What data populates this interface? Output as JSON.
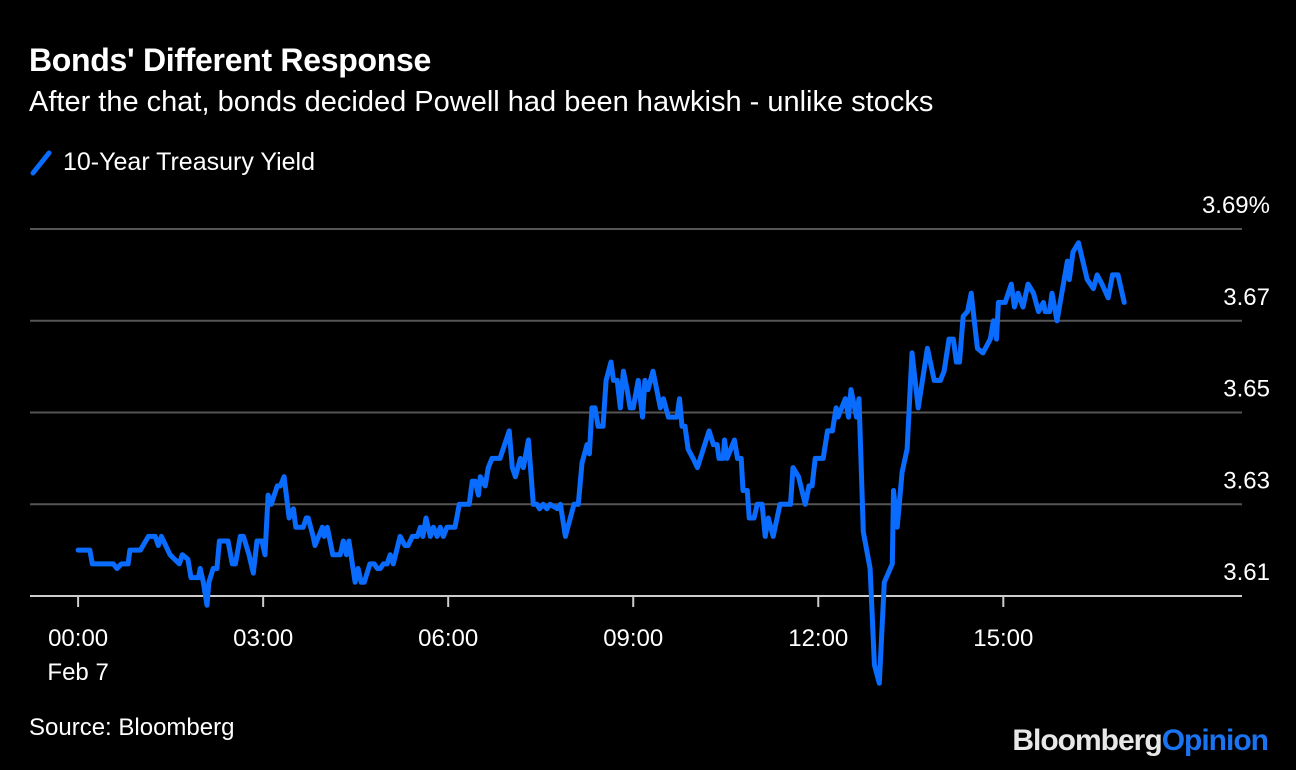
{
  "title": "Bonds' Different Response",
  "subtitle": "After the chat, bonds decided Powell had been hawkish - unlike stocks",
  "source": "Source: Bloomberg",
  "logo": {
    "part1": "Bloomberg",
    "part2": "Opinion"
  },
  "colors": {
    "line": "#0a6cff",
    "grid": "#555555",
    "axis": "#cccccc"
  },
  "chart_data": {
    "type": "line",
    "title": "Bonds' Different Response",
    "subtitle": "After the chat, bonds decided Powell had been hawkish - unlike stocks",
    "xlabel": "",
    "ylabel": "",
    "x_unit": "hours since 00:00 Feb 7",
    "xlim": [
      -0.78,
      18.87
    ],
    "ylim": [
      3.61,
      3.69
    ],
    "grid": true,
    "legend_placement": "top-left",
    "x_ticks": [
      {
        "value": 0,
        "label": "00:00",
        "sublabel": "Feb 7"
      },
      {
        "value": 3,
        "label": "03:00"
      },
      {
        "value": 6,
        "label": "06:00"
      },
      {
        "value": 9,
        "label": "09:00"
      },
      {
        "value": 12,
        "label": "12:00"
      },
      {
        "value": 15,
        "label": "15:00"
      }
    ],
    "y_ticks": [
      {
        "value": 3.61,
        "label": "3.61"
      },
      {
        "value": 3.63,
        "label": "3.63"
      },
      {
        "value": 3.65,
        "label": "3.65"
      },
      {
        "value": 3.67,
        "label": "3.67"
      },
      {
        "value": 3.69,
        "label": "3.69%"
      }
    ],
    "series": [
      {
        "name": "10-Year Treasury Yield",
        "points": [
          [
            0,
            3.62
          ],
          [
            0.19,
            3.62
          ],
          [
            0.23,
            3.617
          ],
          [
            0.57,
            3.617
          ],
          [
            0.63,
            3.616
          ],
          [
            0.7,
            3.617
          ],
          [
            0.81,
            3.617
          ],
          [
            0.84,
            3.62
          ],
          [
            1.01,
            3.62
          ],
          [
            1.14,
            3.623
          ],
          [
            1.25,
            3.623
          ],
          [
            1.3,
            3.621
          ],
          [
            1.35,
            3.623
          ],
          [
            1.49,
            3.619
          ],
          [
            1.64,
            3.617
          ],
          [
            1.69,
            3.619
          ],
          [
            1.78,
            3.618
          ],
          [
            1.83,
            3.614
          ],
          [
            1.95,
            3.614
          ],
          [
            1.98,
            3.616
          ],
          [
            2.03,
            3.613
          ],
          [
            2.09,
            3.608
          ],
          [
            2.12,
            3.613
          ],
          [
            2.19,
            3.616
          ],
          [
            2.25,
            3.616
          ],
          [
            2.29,
            3.622
          ],
          [
            2.43,
            3.622
          ],
          [
            2.5,
            3.617
          ],
          [
            2.55,
            3.617
          ],
          [
            2.63,
            3.623
          ],
          [
            2.68,
            3.623
          ],
          [
            2.77,
            3.619
          ],
          [
            2.84,
            3.615
          ],
          [
            2.9,
            3.622
          ],
          [
            2.98,
            3.622
          ],
          [
            3.03,
            3.619
          ],
          [
            3.08,
            3.632
          ],
          [
            3.13,
            3.63
          ],
          [
            3.23,
            3.634
          ],
          [
            3.28,
            3.634
          ],
          [
            3.34,
            3.636
          ],
          [
            3.42,
            3.627
          ],
          [
            3.49,
            3.629
          ],
          [
            3.53,
            3.625
          ],
          [
            3.65,
            3.625
          ],
          [
            3.7,
            3.627
          ],
          [
            3.73,
            3.627
          ],
          [
            3.81,
            3.623
          ],
          [
            3.84,
            3.621
          ],
          [
            3.96,
            3.625
          ],
          [
            3.99,
            3.623
          ],
          [
            4.04,
            3.625
          ],
          [
            4.13,
            3.619
          ],
          [
            4.25,
            3.619
          ],
          [
            4.3,
            3.622
          ],
          [
            4.35,
            3.619
          ],
          [
            4.39,
            3.622
          ],
          [
            4.49,
            3.613
          ],
          [
            4.54,
            3.616
          ],
          [
            4.59,
            3.613
          ],
          [
            4.64,
            3.613
          ],
          [
            4.73,
            3.617
          ],
          [
            4.8,
            3.617
          ],
          [
            4.85,
            3.616
          ],
          [
            4.9,
            3.616
          ],
          [
            4.95,
            3.617
          ],
          [
            5.01,
            3.617
          ],
          [
            5.06,
            3.619
          ],
          [
            5.11,
            3.617
          ],
          [
            5.22,
            3.623
          ],
          [
            5.3,
            3.621
          ],
          [
            5.35,
            3.621
          ],
          [
            5.42,
            3.623
          ],
          [
            5.5,
            3.623
          ],
          [
            5.55,
            3.625
          ],
          [
            5.59,
            3.623
          ],
          [
            5.64,
            3.627
          ],
          [
            5.71,
            3.623
          ],
          [
            5.76,
            3.625
          ],
          [
            5.82,
            3.623
          ],
          [
            5.87,
            3.625
          ],
          [
            5.92,
            3.623
          ],
          [
            5.98,
            3.625
          ],
          [
            6.11,
            3.625
          ],
          [
            6.18,
            3.63
          ],
          [
            6.34,
            3.63
          ],
          [
            6.39,
            3.635
          ],
          [
            6.44,
            3.635
          ],
          [
            6.49,
            3.632
          ],
          [
            6.52,
            3.636
          ],
          [
            6.6,
            3.634
          ],
          [
            6.65,
            3.638
          ],
          [
            6.71,
            3.64
          ],
          [
            6.84,
            3.64
          ],
          [
            6.99,
            3.646
          ],
          [
            7.04,
            3.638
          ],
          [
            7.09,
            3.636
          ],
          [
            7.17,
            3.64
          ],
          [
            7.22,
            3.638
          ],
          [
            7.3,
            3.644
          ],
          [
            7.38,
            3.63
          ],
          [
            7.44,
            3.63
          ],
          [
            7.48,
            3.629
          ],
          [
            7.54,
            3.63
          ],
          [
            7.6,
            3.629
          ],
          [
            7.65,
            3.63
          ],
          [
            7.77,
            3.629
          ],
          [
            7.82,
            3.63
          ],
          [
            7.9,
            3.623
          ],
          [
            7.98,
            3.627
          ],
          [
            8.04,
            3.63
          ],
          [
            8.11,
            3.63
          ],
          [
            8.17,
            3.639
          ],
          [
            8.25,
            3.643
          ],
          [
            8.29,
            3.641
          ],
          [
            8.33,
            3.651
          ],
          [
            8.38,
            3.651
          ],
          [
            8.43,
            3.647
          ],
          [
            8.51,
            3.647
          ],
          [
            8.56,
            3.657
          ],
          [
            8.64,
            3.661
          ],
          [
            8.68,
            3.657
          ],
          [
            8.74,
            3.657
          ],
          [
            8.79,
            3.651
          ],
          [
            8.84,
            3.659
          ],
          [
            8.9,
            3.655
          ],
          [
            8.95,
            3.651
          ],
          [
            9.0,
            3.651
          ],
          [
            9.08,
            3.657
          ],
          [
            9.15,
            3.649
          ],
          [
            9.19,
            3.657
          ],
          [
            9.24,
            3.655
          ],
          [
            9.32,
            3.659
          ],
          [
            9.44,
            3.651
          ],
          [
            9.49,
            3.653
          ],
          [
            9.57,
            3.649
          ],
          [
            9.71,
            3.649
          ],
          [
            9.75,
            3.653
          ],
          [
            9.79,
            3.647
          ],
          [
            9.84,
            3.647
          ],
          [
            9.89,
            3.642
          ],
          [
            9.97,
            3.64
          ],
          [
            10.04,
            3.638
          ],
          [
            10.23,
            3.646
          ],
          [
            10.3,
            3.643
          ],
          [
            10.36,
            3.643
          ],
          [
            10.39,
            3.64
          ],
          [
            10.46,
            3.64
          ],
          [
            10.48,
            3.644
          ],
          [
            10.52,
            3.64
          ],
          [
            10.64,
            3.644
          ],
          [
            10.69,
            3.64
          ],
          [
            10.75,
            3.64
          ],
          [
            10.78,
            3.633
          ],
          [
            10.85,
            3.633
          ],
          [
            10.88,
            3.627
          ],
          [
            10.96,
            3.627
          ],
          [
            11.01,
            3.63
          ],
          [
            11.09,
            3.63
          ],
          [
            11.14,
            3.623
          ],
          [
            11.19,
            3.627
          ],
          [
            11.27,
            3.623
          ],
          [
            11.38,
            3.63
          ],
          [
            11.55,
            3.63
          ],
          [
            11.59,
            3.638
          ],
          [
            11.68,
            3.636
          ],
          [
            11.79,
            3.63
          ],
          [
            11.85,
            3.634
          ],
          [
            11.9,
            3.634
          ],
          [
            11.95,
            3.64
          ],
          [
            12.08,
            3.64
          ],
          [
            12.15,
            3.646
          ],
          [
            12.23,
            3.646
          ],
          [
            12.29,
            3.651
          ],
          [
            12.32,
            3.649
          ],
          [
            12.44,
            3.653
          ],
          [
            12.49,
            3.649
          ],
          [
            12.53,
            3.655
          ],
          [
            12.62,
            3.649
          ],
          [
            12.66,
            3.653
          ],
          [
            12.73,
            3.624
          ],
          [
            12.84,
            3.616
          ],
          [
            12.91,
            3.595
          ],
          [
            12.99,
            3.591
          ],
          [
            13.07,
            3.613
          ],
          [
            13.2,
            3.617
          ],
          [
            13.22,
            3.633
          ],
          [
            13.28,
            3.625
          ],
          [
            13.36,
            3.637
          ],
          [
            13.44,
            3.642
          ],
          [
            13.52,
            3.663
          ],
          [
            13.62,
            3.651
          ],
          [
            13.77,
            3.664
          ],
          [
            13.88,
            3.657
          ],
          [
            13.98,
            3.657
          ],
          [
            14.04,
            3.659
          ],
          [
            14.12,
            3.666
          ],
          [
            14.19,
            3.666
          ],
          [
            14.24,
            3.661
          ],
          [
            14.29,
            3.661
          ],
          [
            14.35,
            3.671
          ],
          [
            14.42,
            3.672
          ],
          [
            14.48,
            3.676
          ],
          [
            14.58,
            3.664
          ],
          [
            14.67,
            3.663
          ],
          [
            14.79,
            3.666
          ],
          [
            14.84,
            3.67
          ],
          [
            14.89,
            3.666
          ],
          [
            14.92,
            3.674
          ],
          [
            15.03,
            3.674
          ],
          [
            15.13,
            3.678
          ],
          [
            15.18,
            3.673
          ],
          [
            15.24,
            3.676
          ],
          [
            15.32,
            3.673
          ],
          [
            15.4,
            3.678
          ],
          [
            15.49,
            3.676
          ],
          [
            15.57,
            3.672
          ],
          [
            15.65,
            3.674
          ],
          [
            15.68,
            3.672
          ],
          [
            15.75,
            3.672
          ],
          [
            15.79,
            3.676
          ],
          [
            15.87,
            3.67
          ],
          [
            16.04,
            3.683
          ],
          [
            16.07,
            3.679
          ],
          [
            16.13,
            3.685
          ],
          [
            16.22,
            3.687
          ],
          [
            16.36,
            3.679
          ],
          [
            16.46,
            3.677
          ],
          [
            16.52,
            3.68
          ],
          [
            16.6,
            3.678
          ],
          [
            16.7,
            3.675
          ],
          [
            16.77,
            3.68
          ],
          [
            16.86,
            3.68
          ],
          [
            16.96,
            3.674
          ]
        ]
      }
    ]
  }
}
